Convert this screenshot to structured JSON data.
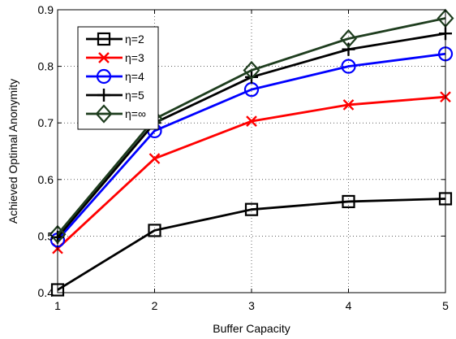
{
  "chart_data": {
    "type": "line",
    "title": "",
    "xlabel": "Buffer Capacity",
    "ylabel": "Achieved Optimal Anonymity",
    "x": [
      1,
      2,
      3,
      4,
      5
    ],
    "xlim": [
      1,
      5
    ],
    "ylim": [
      0.4,
      0.9
    ],
    "xticks": [
      "1",
      "2",
      "3",
      "4",
      "5"
    ],
    "yticks": [
      "0.4",
      "0.5",
      "0.6",
      "0.7",
      "0.8",
      "0.9"
    ],
    "grid": true,
    "legend_position": "top-left",
    "series": [
      {
        "name": "η=2",
        "color": "#000000",
        "marker": "square",
        "values": [
          0.405,
          0.51,
          0.547,
          0.561,
          0.566
        ]
      },
      {
        "name": "η=3",
        "color": "#ff0000",
        "marker": "x",
        "values": [
          0.478,
          0.637,
          0.703,
          0.732,
          0.746
        ]
      },
      {
        "name": "η=4",
        "color": "#0000ff",
        "marker": "circle",
        "values": [
          0.493,
          0.686,
          0.759,
          0.8,
          0.822
        ]
      },
      {
        "name": "η=5",
        "color": "#000000",
        "marker": "plus",
        "values": [
          0.498,
          0.7,
          0.781,
          0.83,
          0.858
        ]
      },
      {
        "name": "η=∞",
        "color": "#1e3d1e",
        "marker": "diamond",
        "values": [
          0.503,
          0.707,
          0.793,
          0.849,
          0.885
        ]
      }
    ]
  }
}
